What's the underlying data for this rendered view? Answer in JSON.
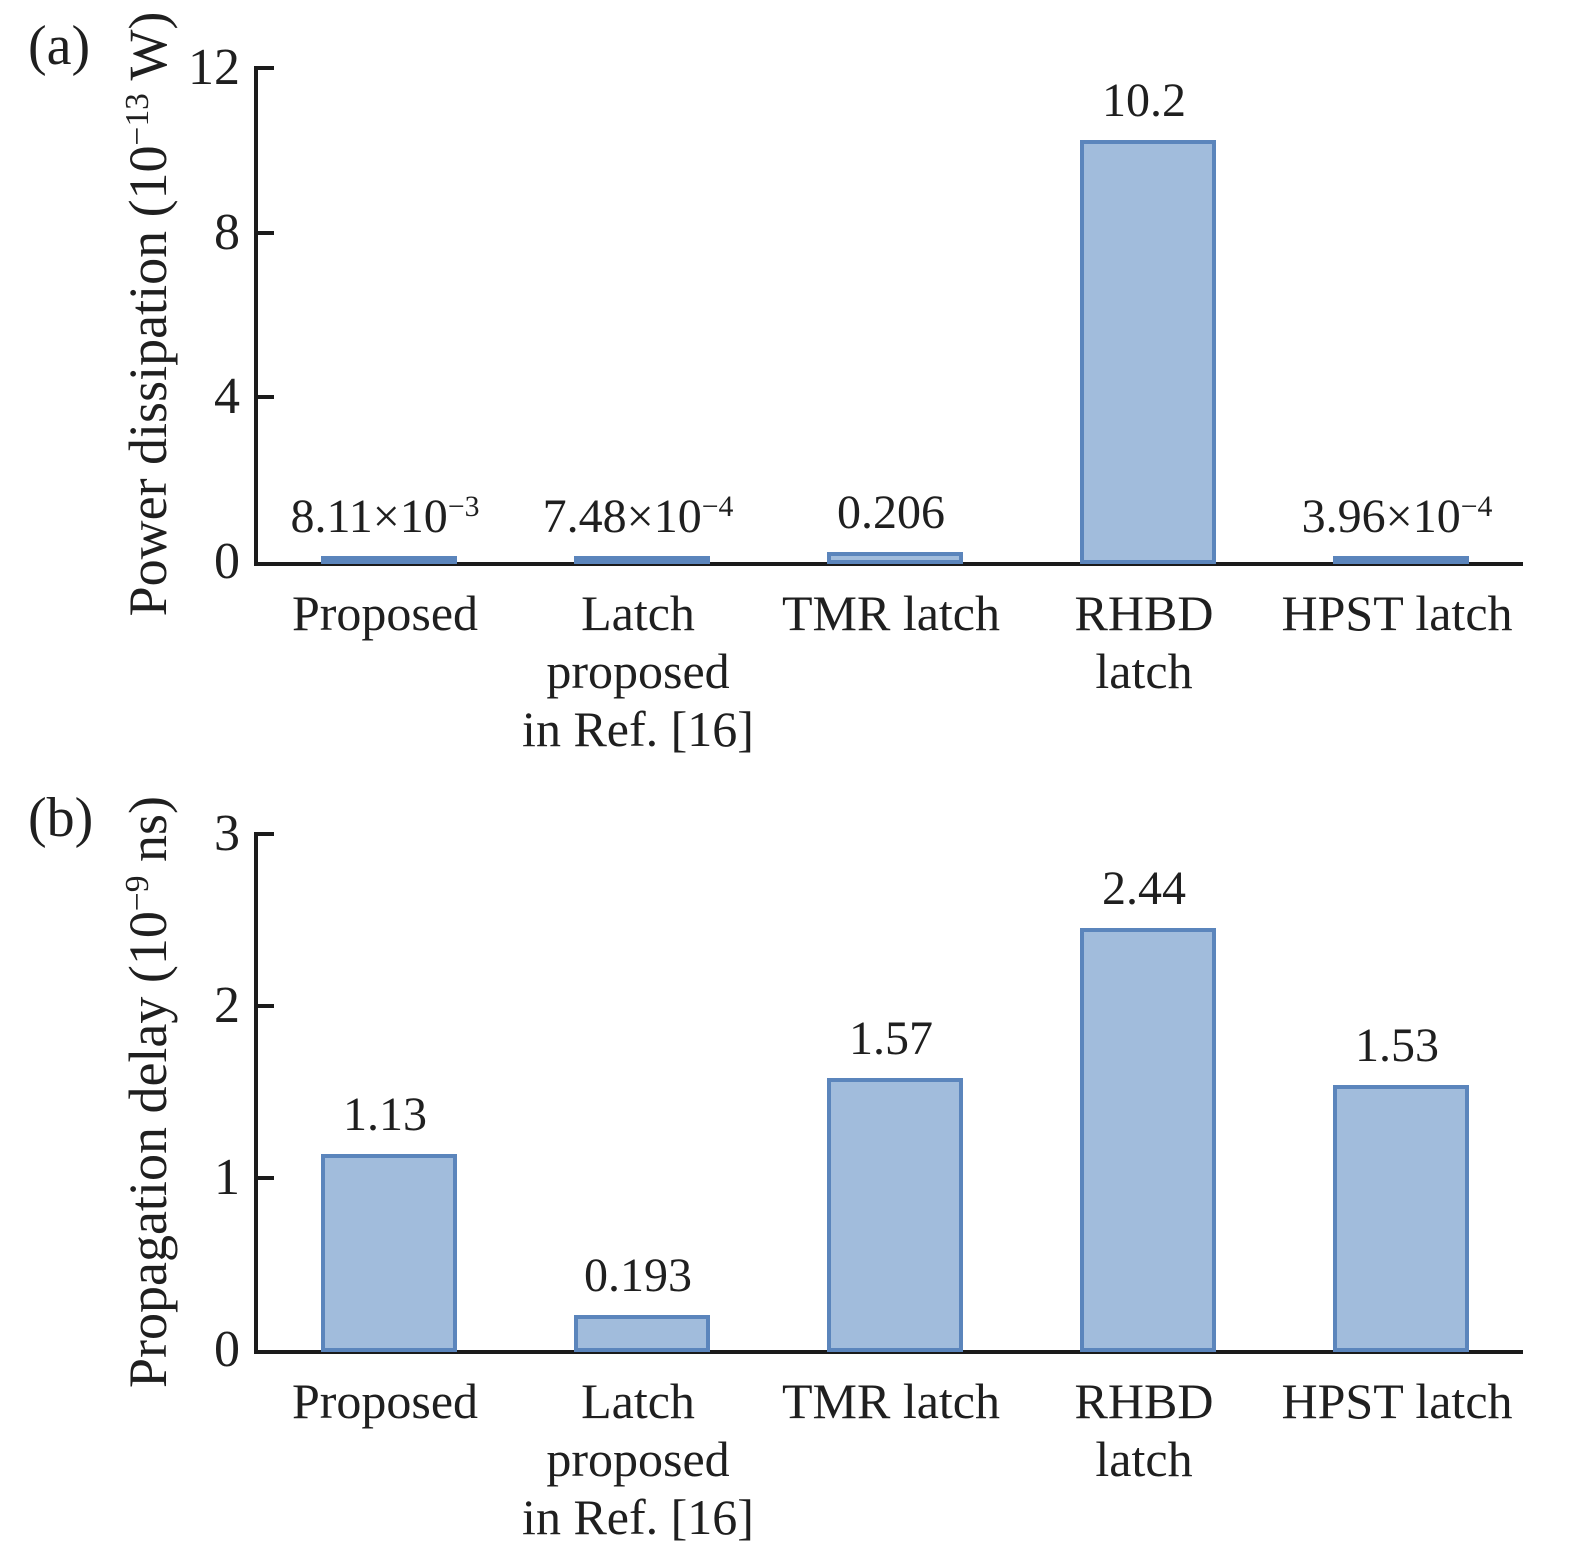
{
  "figure": {
    "panel_a_tag": "(a)",
    "panel_b_tag": "(b)"
  },
  "colors": {
    "bar_fill": "#a1bcdc",
    "bar_border": "#5b85bc",
    "axis": "#1b1b1b",
    "text": "#1f1f1f"
  },
  "chart_data": [
    {
      "type": "bar",
      "panel": "(a)",
      "ylabel": "Power dissipation (10^{−13} W)",
      "xlabel": "",
      "ylim": [
        0,
        12
      ],
      "yticks": [
        0,
        4,
        8,
        12
      ],
      "grid": false,
      "legend": "none",
      "categories": [
        "Proposed",
        "Latch proposed in Ref. [16]",
        "TMR latch",
        "RHBD latch",
        "HPST latch"
      ],
      "category_lines": [
        [
          "Proposed"
        ],
        [
          "Latch",
          "proposed",
          "in Ref. [16]"
        ],
        [
          "TMR latch"
        ],
        [
          "RHBD",
          "latch"
        ],
        [
          "HPST latch"
        ]
      ],
      "values": [
        0.00811,
        0.000748,
        0.206,
        10.2,
        0.000396
      ],
      "value_labels": [
        "8.11×10^{−3}",
        "7.48×10^{−4}",
        "0.206",
        "10.2",
        "3.96×10^{−4}"
      ]
    },
    {
      "type": "bar",
      "panel": "(b)",
      "ylabel": "Propagation delay (10^{−9} ns)",
      "xlabel": "",
      "ylim": [
        0,
        3
      ],
      "yticks": [
        0,
        1,
        2,
        3
      ],
      "grid": false,
      "legend": "none",
      "categories": [
        "Proposed",
        "Latch proposed in Ref. [16]",
        "TMR latch",
        "RHBD latch",
        "HPST latch"
      ],
      "category_lines": [
        [
          "Proposed"
        ],
        [
          "Latch",
          "proposed",
          "in Ref. [16]"
        ],
        [
          "TMR latch"
        ],
        [
          "RHBD",
          "latch"
        ],
        [
          "HPST latch"
        ]
      ],
      "values": [
        1.13,
        0.193,
        1.57,
        2.44,
        1.53
      ],
      "value_labels": [
        "1.13",
        "0.193",
        "1.57",
        "2.44",
        "1.53"
      ]
    }
  ]
}
